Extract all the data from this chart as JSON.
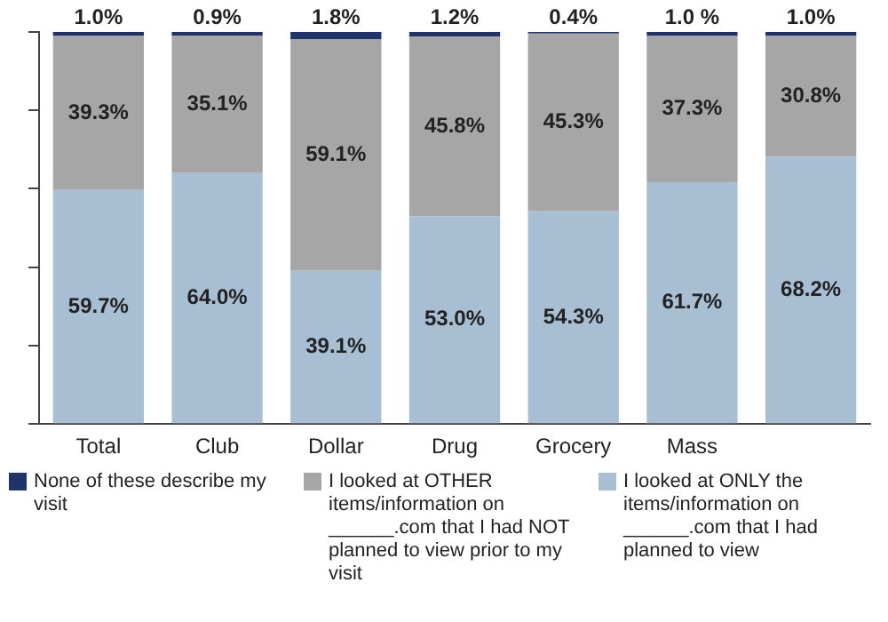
{
  "chart_data": {
    "type": "bar",
    "stacked": true,
    "categories": [
      "Total",
      "Club",
      "Dollar",
      "Drug",
      "Grocery",
      "Mass",
      null
    ],
    "series": [
      {
        "name": "I looked at ONLY the items/information on ______.com that I had planned to view",
        "color": "#a8bed3",
        "values": [
          59.7,
          64.0,
          39.1,
          53.0,
          54.3,
          61.7,
          68.2
        ],
        "value_labels": [
          "59.7%",
          "64.0%",
          "39.1%",
          "53.0%",
          "54.3%",
          "61.7%",
          "68.2%"
        ]
      },
      {
        "name": "I looked at OTHER items/information on ______.com that I had NOT planned to view prior to my visit",
        "color": "#a6a6a6",
        "values": [
          39.3,
          35.1,
          59.1,
          45.8,
          45.3,
          37.3,
          30.8
        ],
        "value_labels": [
          "39.3%",
          "35.1%",
          "59.1%",
          "45.8%",
          "45.3%",
          "37.3%",
          "30.8%"
        ]
      },
      {
        "name": "None of these describe my visit",
        "color": "#1f3468",
        "values": [
          1.0,
          0.9,
          1.8,
          1.2,
          0.4,
          1.0,
          1.0
        ],
        "value_labels": [
          "1.0%",
          "0.9%",
          "1.8%",
          "1.2%",
          "0.4%",
          "1.0 %",
          "1.0%"
        ]
      }
    ],
    "ylim": [
      0,
      100
    ],
    "yticks": [
      {
        "value": 0,
        "label": null
      },
      {
        "value": 20,
        "label": null
      },
      {
        "value": 40,
        "label": null
      },
      {
        "value": 60,
        "label": null
      },
      {
        "value": 80,
        "label": null
      },
      {
        "value": 100,
        "label": null
      }
    ],
    "grid": false,
    "legend": "bottom"
  }
}
